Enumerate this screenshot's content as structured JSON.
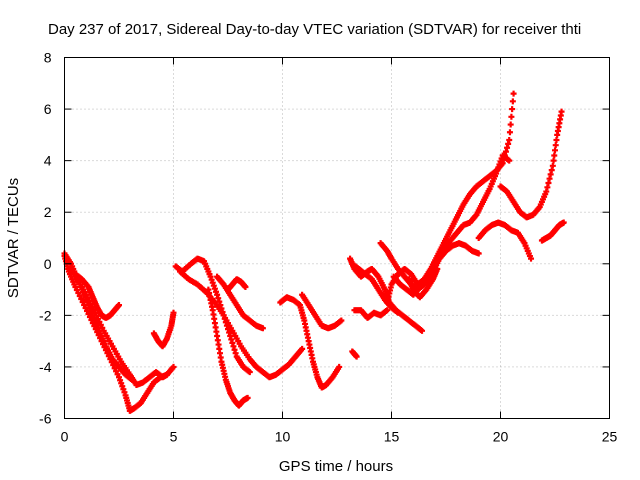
{
  "chart_data": {
    "type": "scatter",
    "title": "Day 237 of 2017, Sidereal Day-to-day VTEC variation (SDTVAR) for receiver thti",
    "xlabel": "GPS time / hours",
    "ylabel": "SDTVAR / TECUs",
    "xlim": [
      0,
      25
    ],
    "ylim": [
      -6,
      8
    ],
    "xticks": [
      "0",
      "5",
      "10",
      "15",
      "20",
      "25"
    ],
    "yticks": [
      "-6",
      "-4",
      "-2",
      "0",
      "2",
      "4",
      "6",
      "8"
    ],
    "grid": true,
    "marker": "plus",
    "color": "#ff0000",
    "series": [
      {
        "x": [
          0.0,
          0.2,
          0.5,
          0.9,
          1.3,
          1.7,
          2.1,
          2.5,
          2.8,
          3.0
        ],
        "y": [
          0.3,
          -0.3,
          -0.9,
          -1.6,
          -2.3,
          -3.0,
          -3.7,
          -4.4,
          -5.1,
          -5.7
        ]
      },
      {
        "x": [
          3.0,
          3.2,
          3.5,
          3.8,
          4.1,
          4.4,
          4.7,
          5.0
        ],
        "y": [
          -5.7,
          -5.6,
          -5.4,
          -5.0,
          -4.6,
          -4.4,
          -4.3,
          -4.0
        ]
      },
      {
        "x": [
          0.0,
          0.3,
          0.6,
          1.0,
          1.4,
          1.8,
          2.2,
          2.6,
          3.0,
          3.3,
          3.6,
          3.9,
          4.2,
          4.5,
          4.7
        ],
        "y": [
          0.4,
          0.0,
          -0.6,
          -1.2,
          -1.9,
          -2.6,
          -3.2,
          -3.8,
          -4.3,
          -4.7,
          -4.6,
          -4.4,
          -4.2,
          -4.4,
          -4.3
        ]
      },
      {
        "x": [
          0.2,
          0.5,
          0.8,
          1.1,
          1.3,
          1.5,
          1.7,
          1.9,
          2.1,
          2.3,
          2.5
        ],
        "y": [
          -0.2,
          -0.4,
          -0.6,
          -0.9,
          -1.3,
          -1.7,
          -2.0,
          -2.1,
          -2.0,
          -1.8,
          -1.6
        ]
      },
      {
        "x": [
          0.4,
          0.7,
          1.0,
          1.3,
          1.6,
          1.9,
          2.2,
          2.5,
          2.8,
          3.1
        ],
        "y": [
          -0.3,
          -0.8,
          -1.4,
          -2.0,
          -2.6,
          -3.2,
          -3.7,
          -4.0,
          -4.3,
          -4.5
        ]
      },
      {
        "x": [
          4.1,
          4.3,
          4.5,
          4.7,
          4.9,
          5.0
        ],
        "y": [
          -2.7,
          -3.0,
          -3.2,
          -2.9,
          -2.4,
          -1.9
        ]
      },
      {
        "x": [
          5.1,
          5.4,
          5.8,
          6.1,
          6.4,
          6.7,
          7.0,
          7.3,
          7.6,
          7.9,
          8.2,
          8.5
        ],
        "y": [
          -0.1,
          -0.3,
          0.0,
          0.2,
          0.1,
          -0.5,
          -1.2,
          -2.0,
          -2.8,
          -3.6,
          -4.0,
          -4.2
        ]
      },
      {
        "x": [
          5.3,
          5.7,
          6.1,
          6.5,
          6.9,
          7.3,
          7.7,
          8.1,
          8.5,
          8.8,
          9.1,
          9.4,
          9.7,
          10.0,
          10.3,
          10.6,
          10.9
        ],
        "y": [
          -0.3,
          -0.6,
          -0.8,
          -1.1,
          -1.5,
          -2.0,
          -2.6,
          -3.2,
          -3.7,
          -4.0,
          -4.2,
          -4.4,
          -4.3,
          -4.1,
          -3.9,
          -3.6,
          -3.3
        ]
      },
      {
        "x": [
          6.6,
          6.8,
          7.0,
          7.2,
          7.4,
          7.6,
          7.8,
          8.0,
          8.2,
          8.4
        ],
        "y": [
          -1.0,
          -1.8,
          -2.8,
          -3.8,
          -4.5,
          -5.0,
          -5.3,
          -5.5,
          -5.3,
          -5.2
        ]
      },
      {
        "x": [
          7.0,
          7.3,
          7.6,
          7.9,
          8.2,
          8.5,
          8.8,
          9.1
        ],
        "y": [
          -0.5,
          -0.8,
          -1.2,
          -1.6,
          -2.0,
          -2.2,
          -2.4,
          -2.5
        ]
      },
      {
        "x": [
          7.5,
          7.7,
          7.9,
          8.1,
          8.3
        ],
        "y": [
          -1.0,
          -0.8,
          -0.6,
          -0.7,
          -0.9
        ]
      },
      {
        "x": [
          9.9,
          10.2,
          10.5,
          10.8,
          11.0,
          11.2,
          11.4,
          11.6,
          11.8,
          12.0,
          12.3,
          12.6
        ],
        "y": [
          -1.5,
          -1.3,
          -1.4,
          -1.6,
          -2.2,
          -3.0,
          -3.8,
          -4.4,
          -4.8,
          -4.7,
          -4.4,
          -4.0
        ]
      },
      {
        "x": [
          10.9,
          11.2,
          11.5,
          11.8,
          12.1,
          12.4,
          12.7
        ],
        "y": [
          -1.2,
          -1.6,
          -2.0,
          -2.4,
          -2.5,
          -2.4,
          -2.2
        ]
      },
      {
        "x": [
          13.1,
          13.3,
          13.6,
          13.9,
          14.1,
          14.4,
          14.7,
          14.9,
          15.2,
          15.5,
          15.8,
          16.1,
          16.4
        ],
        "y": [
          0.2,
          -0.2,
          -0.5,
          -0.3,
          -0.2,
          -0.5,
          -1.0,
          -1.5,
          -1.8,
          -2.0,
          -2.2,
          -2.4,
          -2.6
        ]
      },
      {
        "x": [
          13.3,
          13.6,
          13.9,
          14.2,
          14.5,
          14.8
        ],
        "y": [
          -1.8,
          -1.8,
          -2.1,
          -1.9,
          -2.0,
          -1.8
        ]
      },
      {
        "x": [
          13.2,
          13.4
        ],
        "y": [
          -3.4,
          -3.6
        ]
      },
      {
        "x": [
          14.8,
          15.0,
          15.3,
          15.6,
          15.9,
          16.2,
          16.5,
          16.8,
          17.1,
          17.4,
          17.7,
          18.0,
          18.3,
          18.6,
          18.9,
          19.2,
          19.5,
          19.8,
          20.1,
          20.4,
          20.6
        ],
        "y": [
          -1.5,
          -0.8,
          -0.4,
          -0.2,
          -0.4,
          -0.8,
          -0.6,
          -0.2,
          0.3,
          0.8,
          1.3,
          1.8,
          2.3,
          2.7,
          3.0,
          3.2,
          3.4,
          3.6,
          3.9,
          4.8,
          6.6
        ]
      },
      {
        "x": [
          14.5,
          14.8,
          15.0,
          15.3,
          15.6,
          15.9,
          16.2,
          16.5,
          16.8,
          17.1,
          17.4,
          17.7,
          18.0,
          18.3,
          18.6,
          18.9,
          19.2,
          19.5,
          19.8,
          20.1,
          20.4
        ],
        "y": [
          0.8,
          0.5,
          0.2,
          -0.2,
          -0.5,
          -0.8,
          -1.0,
          -0.8,
          -0.4,
          0.1,
          0.6,
          0.9,
          1.2,
          1.5,
          1.6,
          1.9,
          2.4,
          2.9,
          3.5,
          4.2,
          4.0
        ]
      },
      {
        "x": [
          15.1,
          15.4,
          15.7,
          16.0,
          16.3,
          16.6,
          16.9,
          17.2,
          17.5,
          17.8,
          18.1,
          18.4,
          18.7,
          19.0
        ],
        "y": [
          -0.5,
          -0.8,
          -1.0,
          -1.2,
          -0.9,
          -0.6,
          -0.3,
          0.2,
          0.5,
          0.7,
          0.8,
          0.7,
          0.5,
          0.4
        ]
      },
      {
        "x": [
          19.0,
          19.3,
          19.6,
          19.9,
          20.2,
          20.5,
          20.8,
          21.1,
          21.4
        ],
        "y": [
          1.0,
          1.3,
          1.5,
          1.6,
          1.5,
          1.3,
          1.2,
          0.8,
          0.2
        ]
      },
      {
        "x": [
          20.0,
          20.3,
          20.6,
          20.9,
          21.2,
          21.5,
          21.8,
          22.1,
          22.4,
          22.6,
          22.8
        ],
        "y": [
          3.0,
          2.8,
          2.4,
          2.0,
          1.8,
          1.9,
          2.2,
          2.8,
          3.8,
          5.0,
          5.9
        ]
      },
      {
        "x": [
          21.9,
          22.1,
          22.3,
          22.5,
          22.7,
          22.9
        ],
        "y": [
          0.9,
          1.0,
          1.1,
          1.3,
          1.5,
          1.6
        ]
      },
      {
        "x": [
          13.2,
          13.5,
          13.8,
          14.1,
          14.4,
          14.7,
          15.0,
          15.3
        ],
        "y": [
          0.0,
          -0.2,
          -0.4,
          -0.6,
          -1.0,
          -1.4,
          -1.7,
          -1.9
        ]
      },
      {
        "x": [
          15.8,
          16.0,
          16.3,
          16.6,
          16.9,
          17.1
        ],
        "y": [
          -0.6,
          -1.0,
          -1.3,
          -1.0,
          -0.6,
          -0.2
        ]
      }
    ]
  }
}
